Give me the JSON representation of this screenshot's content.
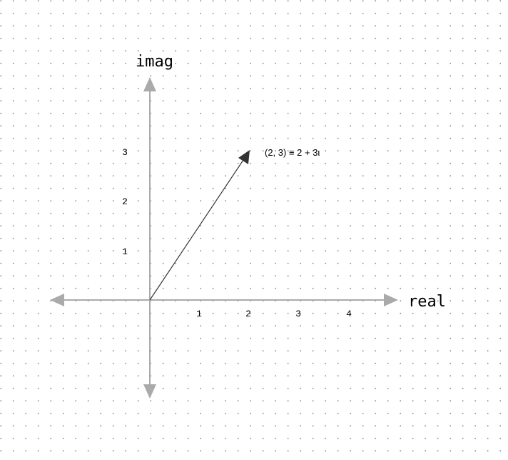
{
  "diagram": {
    "axes": {
      "x_label": "real",
      "y_label": "imag",
      "x_ticks": [
        "1",
        "2",
        "3",
        "4"
      ],
      "y_ticks": [
        "1",
        "2",
        "3"
      ],
      "axis_color": "#aaaaaa"
    },
    "vector": {
      "from": [
        0,
        0
      ],
      "to": [
        2,
        3
      ],
      "label": "(2, 3) ≡ 2 + 3ι",
      "color": "#333333"
    },
    "background": {
      "grid_dots": true,
      "dot_color": "#888888"
    }
  }
}
